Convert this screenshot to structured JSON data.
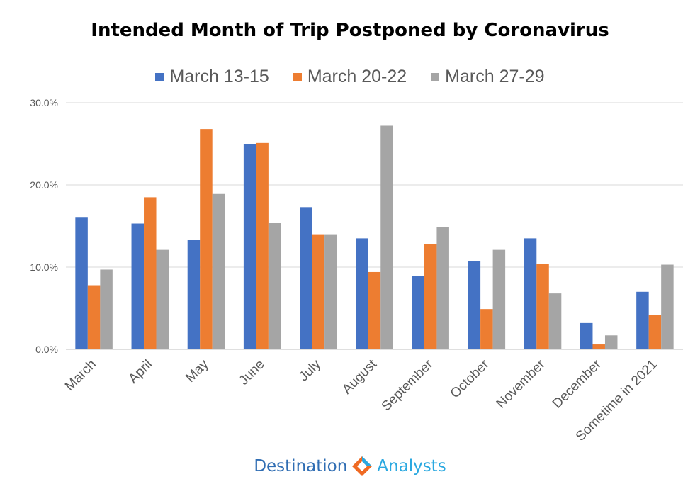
{
  "chart_data": {
    "type": "bar",
    "title": "Intended Month of Trip Postponed by Coronavirus",
    "categories": [
      "March",
      "April",
      "May",
      "June",
      "July",
      "August",
      "September",
      "October",
      "November",
      "December",
      "Sometime in 2021"
    ],
    "series": [
      {
        "name": "March 13-15",
        "color": "#4472c4",
        "values": [
          16.1,
          15.3,
          13.3,
          25.0,
          17.3,
          13.5,
          8.9,
          10.7,
          13.5,
          3.2,
          7.0
        ]
      },
      {
        "name": "March 20-22",
        "color": "#ed7d31",
        "values": [
          7.8,
          18.5,
          26.8,
          25.1,
          14.0,
          9.4,
          12.8,
          4.9,
          10.4,
          0.6,
          4.2
        ]
      },
      {
        "name": "March 27-29",
        "color": "#a5a5a5",
        "values": [
          9.7,
          12.1,
          18.9,
          15.4,
          14.0,
          27.2,
          14.9,
          12.1,
          6.8,
          1.7,
          10.3
        ]
      }
    ],
    "yticks": [
      "0.0%",
      "10.0%",
      "20.0%",
      "30.0%"
    ],
    "ylim": [
      0,
      30
    ],
    "legend": "top",
    "grid": true
  },
  "logo": {
    "left": "Destination",
    "right": "Analysts",
    "colors": [
      "#2f6db3",
      "#29a8e0",
      "#ef6a23"
    ]
  }
}
